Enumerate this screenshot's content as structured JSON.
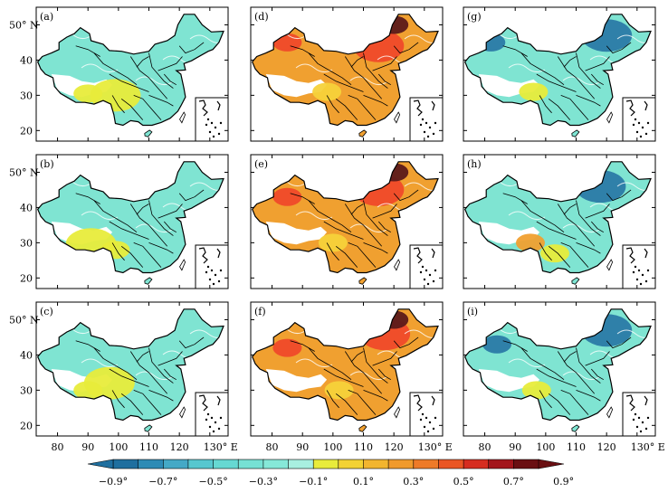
{
  "panels": [
    {
      "id": "a",
      "label": "(a)",
      "base": "#7fe4d2",
      "ylabels": true,
      "xlabels": false,
      "blobs": [
        {
          "c": "#e8ec3b",
          "x": 99,
          "y": 30
        },
        {
          "c": "#e8ec3b",
          "x": 90,
          "y": 30.5
        }
      ],
      "contours": "#ffffff"
    },
    {
      "id": "d",
      "label": "(d)",
      "base": "#f0a030",
      "ylabels": false,
      "xlabels": false,
      "blobs": [
        {
          "c": "#ef4a2a",
          "x": 115,
          "y": 44
        },
        {
          "c": "#ef4a2a",
          "x": 85,
          "y": 45
        },
        {
          "c": "#f5d23a",
          "x": 98,
          "y": 31
        },
        {
          "c": "#5b1a1a",
          "x": 120,
          "y": 50
        }
      ],
      "contours": "#ffffff"
    },
    {
      "id": "g",
      "label": "(g)",
      "base": "#7fe4d2",
      "ylabels": false,
      "xlabels": false,
      "blobs": [
        {
          "c": "#2b7aa6",
          "x": 120,
          "y": 47
        },
        {
          "c": "#2b7aa6",
          "x": 82,
          "y": 45
        },
        {
          "c": "#e8ec3b",
          "x": 96,
          "y": 31
        }
      ],
      "contours": "#ffffff"
    },
    {
      "id": "b",
      "label": "(b)",
      "base": "#7fe4d2",
      "ylabels": true,
      "xlabels": false,
      "blobs": [
        {
          "c": "#e8ec3b",
          "x": 91,
          "y": 29.5
        },
        {
          "c": "#e8ec3b",
          "x": 99,
          "y": 28
        }
      ],
      "contours": "#ffffff"
    },
    {
      "id": "e",
      "label": "(e)",
      "base": "#f0a030",
      "ylabels": false,
      "xlabels": false,
      "blobs": [
        {
          "c": "#ef4a2a",
          "x": 115,
          "y": 45
        },
        {
          "c": "#ef4a2a",
          "x": 85,
          "y": 43
        },
        {
          "c": "#f5d23a",
          "x": 100,
          "y": 30
        },
        {
          "c": "#5b1a1a",
          "x": 120,
          "y": 50
        }
      ],
      "contours": "#ffffff"
    },
    {
      "id": "h",
      "label": "(h)",
      "base": "#7fe4d2",
      "ylabels": false,
      "xlabels": false,
      "blobs": [
        {
          "c": "#2b7aa6",
          "x": 118,
          "y": 46
        },
        {
          "c": "#f0a030",
          "x": 95,
          "y": 30
        },
        {
          "c": "#e8ec3b",
          "x": 103,
          "y": 27
        }
      ],
      "contours": "#ffffff"
    },
    {
      "id": "c",
      "label": "(c)",
      "base": "#7fe4d2",
      "ylabels": true,
      "xlabels": true,
      "blobs": [
        {
          "c": "#e8ec3b",
          "x": 97,
          "y": 32
        },
        {
          "c": "#e8ec3b",
          "x": 90,
          "y": 30
        }
      ],
      "contours": "#ffffff"
    },
    {
      "id": "f",
      "label": "(f)",
      "base": "#f0a030",
      "ylabels": false,
      "xlabels": true,
      "blobs": [
        {
          "c": "#ef4a2a",
          "x": 117,
          "y": 46
        },
        {
          "c": "#ef4a2a",
          "x": 85,
          "y": 42
        },
        {
          "c": "#f5d23a",
          "x": 102,
          "y": 30
        },
        {
          "c": "#5b1a1a",
          "x": 120,
          "y": 50
        }
      ],
      "contours": "#ffffff"
    },
    {
      "id": "i",
      "label": "(i)",
      "base": "#7fe4d2",
      "ylabels": false,
      "xlabels": true,
      "blobs": [
        {
          "c": "#2b7aa6",
          "x": 120,
          "y": 47
        },
        {
          "c": "#2b7aa6",
          "x": 84,
          "y": 43
        },
        {
          "c": "#e8ec3b",
          "x": 97,
          "y": 30
        }
      ],
      "contours": "#ffffff"
    }
  ],
  "axes": {
    "lon_ticks": [
      "80",
      "90",
      "100",
      "110",
      "120",
      "130° E"
    ],
    "lat_ticks": [
      "20",
      "30",
      "40",
      "50° N"
    ]
  },
  "colorbar": {
    "colors": [
      "#1f6f9f",
      "#2e8bb5",
      "#45a9c6",
      "#57c7cf",
      "#66d8d2",
      "#76e1d4",
      "#86e8d8",
      "#a8efe0",
      "#e8ec3b",
      "#f3d233",
      "#f2b52f",
      "#f09a2c",
      "#ee7a28",
      "#ea5624",
      "#d62d20",
      "#a3161c",
      "#6a0f12"
    ],
    "labels": [
      "−0.9°",
      "−0.7°",
      "−0.5°",
      "−0.3°",
      "−0.1°",
      "0.1°",
      "0.3°",
      "0.5°",
      "0.7°",
      "0.9°"
    ]
  }
}
